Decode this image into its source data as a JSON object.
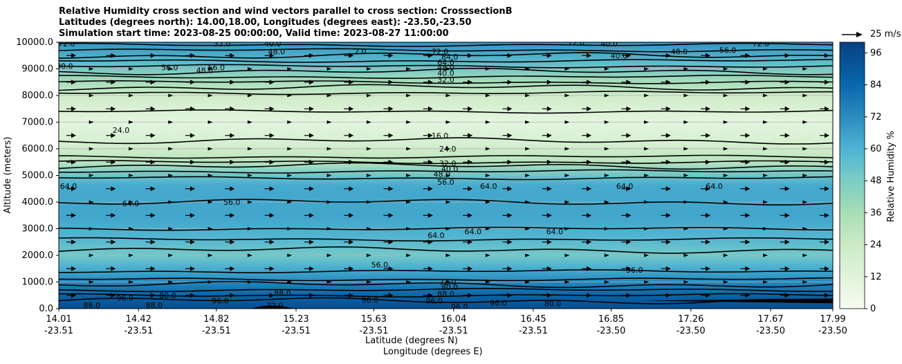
{
  "chart_data": {
    "type": "contour",
    "title_lines": [
      "Relative Humidity cross section and wind vectors parallel to cross section: CrosssectionB",
      "Latitudes (degrees north): 14.00,18.00, Longitudes (degrees east): -23.50,-23.50",
      "Simulation start time: 2023-08-25 00:00:00, Valid time: 2023-08-27 11:00:00"
    ],
    "ylabel": "Altitude (meters)",
    "xlabel_lat": "Latitude (degrees N)",
    "xlabel_lon": "Longitude (degrees E)",
    "ylim": [
      0,
      10000
    ],
    "yticks": [
      "0.0",
      "1000.0",
      "2000.0",
      "3000.0",
      "4000.0",
      "5000.0",
      "6000.0",
      "7000.0",
      "8000.0",
      "9000.0",
      "10000.0"
    ],
    "xticks": [
      {
        "lat": "14.01",
        "lon": "-23.51"
      },
      {
        "lat": "14.42",
        "lon": "-23.51"
      },
      {
        "lat": "14.82",
        "lon": "-23.51"
      },
      {
        "lat": "15.23",
        "lon": "-23.51"
      },
      {
        "lat": "15.63",
        "lon": "-23.51"
      },
      {
        "lat": "16.04",
        "lon": "-23.51"
      },
      {
        "lat": "16.45",
        "lon": "-23.51"
      },
      {
        "lat": "16.85",
        "lon": "-23.50"
      },
      {
        "lat": "17.26",
        "lon": "-23.50"
      },
      {
        "lat": "17.67",
        "lon": "-23.50"
      },
      {
        "lat": "17.99",
        "lon": "-23.50"
      }
    ],
    "colorbar": {
      "label": "Relative Humidity %",
      "ticks": [
        "0",
        "12",
        "24",
        "36",
        "48",
        "60",
        "72",
        "84",
        "96"
      ],
      "range": [
        0,
        100
      ],
      "colormap": "GnBu"
    },
    "quiver_key": "25 m/s",
    "humidity_bands": [
      {
        "altitude": 0,
        "rh": 94
      },
      {
        "altitude": 400,
        "rh": 88
      },
      {
        "altitude": 900,
        "rh": 76
      },
      {
        "altitude": 1500,
        "rh": 62
      },
      {
        "altitude": 2000,
        "rh": 50
      },
      {
        "altitude": 2600,
        "rh": 58
      },
      {
        "altitude": 3400,
        "rh": 64
      },
      {
        "altitude": 4600,
        "rh": 63
      },
      {
        "altitude": 5000,
        "rh": 52
      },
      {
        "altitude": 5500,
        "rh": 30
      },
      {
        "altitude": 6200,
        "rh": 18
      },
      {
        "altitude": 7000,
        "rh": 10
      },
      {
        "altitude": 8000,
        "rh": 22
      },
      {
        "altitude": 8600,
        "rh": 38
      },
      {
        "altitude": 9200,
        "rh": 55
      },
      {
        "altitude": 10000,
        "rh": 70
      }
    ],
    "contour_labels": [
      {
        "text": "72.0",
        "lat": 14.05,
        "alt": 9950
      },
      {
        "text": "80.0",
        "lat": 14.04,
        "alt": 9100
      },
      {
        "text": "32.0",
        "lat": 14.85,
        "alt": 9950
      },
      {
        "text": "40.0",
        "lat": 15.11,
        "alt": 9950
      },
      {
        "text": "48.0",
        "lat": 15.13,
        "alt": 9650
      },
      {
        "text": "56.0",
        "lat": 14.58,
        "alt": 9050
      },
      {
        "text": "56.0",
        "lat": 14.82,
        "alt": 9050
      },
      {
        "text": "48.0",
        "lat": 14.76,
        "alt": 8950
      },
      {
        "text": "2.0",
        "lat": 15.56,
        "alt": 9650
      },
      {
        "text": "72.0",
        "lat": 15.97,
        "alt": 9650
      },
      {
        "text": "84.0",
        "lat": 16.02,
        "alt": 9450
      },
      {
        "text": "64.0",
        "lat": 16.0,
        "alt": 9250
      },
      {
        "text": "48.0",
        "lat": 16.0,
        "alt": 9050
      },
      {
        "text": "40.0",
        "lat": 16.0,
        "alt": 8850
      },
      {
        "text": "32.0",
        "lat": 16.0,
        "alt": 8600
      },
      {
        "text": "72.0",
        "lat": 16.67,
        "alt": 9990
      },
      {
        "text": "40.0",
        "lat": 16.84,
        "alt": 9950
      },
      {
        "text": "40.0",
        "lat": 16.89,
        "alt": 9500
      },
      {
        "text": "48.0",
        "lat": 17.2,
        "alt": 9650
      },
      {
        "text": "56.0",
        "lat": 17.45,
        "alt": 9700
      },
      {
        "text": "72.0",
        "lat": 17.62,
        "alt": 9950
      },
      {
        "text": "24.0",
        "lat": 14.33,
        "alt": 6700
      },
      {
        "text": "16.0",
        "lat": 15.97,
        "alt": 6500
      },
      {
        "text": "24.0",
        "lat": 16.01,
        "alt": 6000
      },
      {
        "text": "32.0",
        "lat": 16.01,
        "alt": 5450
      },
      {
        "text": "40.0",
        "lat": 16.02,
        "alt": 5250
      },
      {
        "text": "48.0",
        "lat": 15.98,
        "alt": 5050
      },
      {
        "text": "56.0",
        "lat": 16.0,
        "alt": 4750
      },
      {
        "text": "64.0",
        "lat": 14.06,
        "alt": 4600
      },
      {
        "text": "64.0",
        "lat": 14.38,
        "alt": 3950
      },
      {
        "text": "56.0",
        "lat": 14.9,
        "alt": 4000
      },
      {
        "text": "64.0",
        "lat": 16.22,
        "alt": 4600
      },
      {
        "text": "64.0",
        "lat": 16.92,
        "alt": 4600
      },
      {
        "text": "64.0",
        "lat": 17.38,
        "alt": 4600
      },
      {
        "text": "64.0",
        "lat": 15.95,
        "alt": 2750
      },
      {
        "text": "64.0",
        "lat": 16.14,
        "alt": 2900
      },
      {
        "text": "64.0",
        "lat": 16.56,
        "alt": 2900
      },
      {
        "text": "56.0",
        "lat": 15.66,
        "alt": 1650
      },
      {
        "text": "56.0",
        "lat": 16.97,
        "alt": 1450
      },
      {
        "text": "72.0",
        "lat": 16.01,
        "alt": 1000
      },
      {
        "text": "80.0",
        "lat": 16.02,
        "alt": 800
      },
      {
        "text": "88.0",
        "lat": 16.0,
        "alt": 560
      },
      {
        "text": "96.0",
        "lat": 15.94,
        "alt": 300
      },
      {
        "text": "96.0",
        "lat": 16.07,
        "alt": 80
      },
      {
        "text": "80.0",
        "lat": 16.55,
        "alt": 200
      },
      {
        "text": "96.0",
        "lat": 14.35,
        "alt": 400
      },
      {
        "text": "80.0",
        "lat": 14.57,
        "alt": 500
      },
      {
        "text": "88.0",
        "lat": 15.16,
        "alt": 580
      },
      {
        "text": "72.0",
        "lat": 15.12,
        "alt": 120
      },
      {
        "text": "88.0",
        "lat": 14.18,
        "alt": 130
      },
      {
        "text": "88.0",
        "lat": 14.5,
        "alt": 130
      },
      {
        "text": "96.0",
        "lat": 14.84,
        "alt": 300
      },
      {
        "text": "96.0",
        "lat": 15.61,
        "alt": 330
      },
      {
        "text": "96.0",
        "lat": 16.27,
        "alt": 220
      }
    ],
    "wind": "Uniform field of eastward-pointing arrows parallel to the cross section at all levels"
  }
}
